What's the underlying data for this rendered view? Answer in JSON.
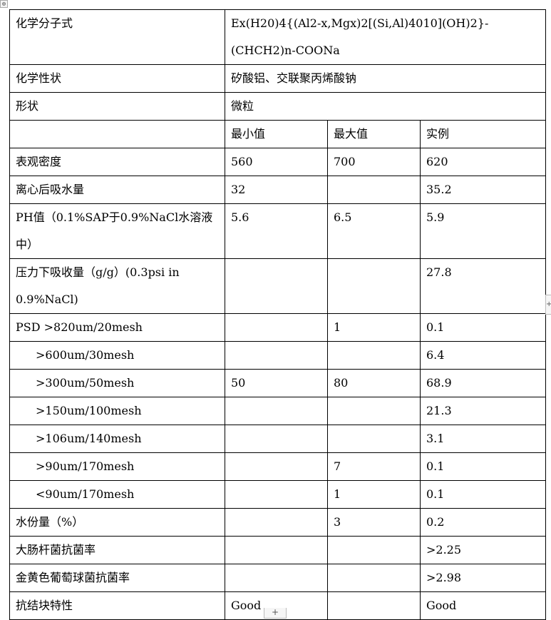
{
  "table": {
    "rows": [
      {
        "label": "化学分子式",
        "merged": "Ex(H20)4{(Al2-x,Mgx)2[(Si,Al)4010](OH)2}-(CHCH2)n-COONa"
      },
      {
        "label": "化学性状",
        "merged": "矽酸铝、交联聚丙烯酸钠"
      },
      {
        "label": "形状",
        "merged": "微粒"
      },
      {
        "label": "",
        "min": "最小值",
        "max": "最大值",
        "example": "实例"
      },
      {
        "label": "表观密度",
        "min": "560",
        "max": "700",
        "example": "620"
      },
      {
        "label": "离心后吸水量",
        "min": "32",
        "max": "",
        "example": "35.2"
      },
      {
        "label": "PH值（0.1%SAP于0.9%NaCl水溶液中）",
        "min": "5.6",
        "max": "6.5",
        "example": "5.9"
      },
      {
        "label": "压力下吸收量（g/g）(0.3psi in 0.9%NaCl)",
        "min": "",
        "max": "",
        "example": "27.8"
      },
      {
        "label": "PSD >820um/20mesh",
        "min": "",
        "max": "1",
        "example": "0.1"
      },
      {
        "label": ">600um/30mesh",
        "min": "",
        "max": "",
        "example": "6.4"
      },
      {
        "label": ">300um/50mesh",
        "min": "50",
        "max": "80",
        "example": "68.9"
      },
      {
        "label": ">150um/100mesh",
        "min": "",
        "max": "",
        "example": "21.3"
      },
      {
        "label": ">106um/140mesh",
        "min": "",
        "max": "",
        "example": "3.1"
      },
      {
        "label": ">90um/170mesh",
        "min": "",
        "max": "7",
        "example": "0.1"
      },
      {
        "label": "<90um/170mesh",
        "min": "",
        "max": "1",
        "example": "0.1"
      },
      {
        "label": "水份量（%）",
        "min": "",
        "max": "3",
        "example": "0.2"
      },
      {
        "label": "大肠杆菌抗菌率",
        "min": "",
        "max": "",
        "example": ">2.25"
      },
      {
        "label": "金黄色葡萄球菌抗菌率",
        "min": "",
        "max": "",
        "example": ">2.98"
      },
      {
        "label": "抗结块特性",
        "min": "Good",
        "max": "",
        "example": "Good"
      }
    ]
  },
  "controls": {
    "add_row": "+",
    "add_col": "+",
    "move_handle": "⊕"
  }
}
